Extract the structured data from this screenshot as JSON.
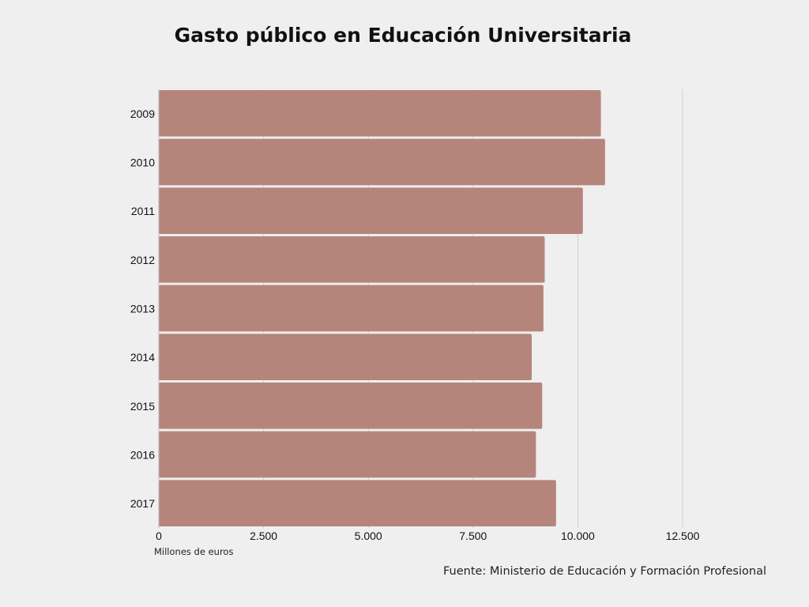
{
  "chart_data": {
    "type": "bar",
    "orientation": "horizontal",
    "title": "Gasto público en Educación Universitaria",
    "xlabel": "Millones de euros",
    "ylabel": "",
    "categories": [
      "2009",
      "2010",
      "2011",
      "2012",
      "2013",
      "2014",
      "2015",
      "2016",
      "2017"
    ],
    "values": [
      10550,
      10650,
      10120,
      9210,
      9180,
      8900,
      9150,
      9000,
      9480
    ],
    "xlim": [
      0,
      12500
    ],
    "xticks": [
      0,
      2500,
      5000,
      7500,
      10000,
      12500
    ],
    "xtick_labels": [
      "0",
      "2.500",
      "5.000",
      "7.500",
      "10.000",
      "12.500"
    ],
    "grid": true,
    "bar_color": "#b5857c",
    "gridline_color": "#cfcfcf",
    "background": "#efefef",
    "source": "Fuente: Ministerio de Educación y Formación Profesional"
  }
}
